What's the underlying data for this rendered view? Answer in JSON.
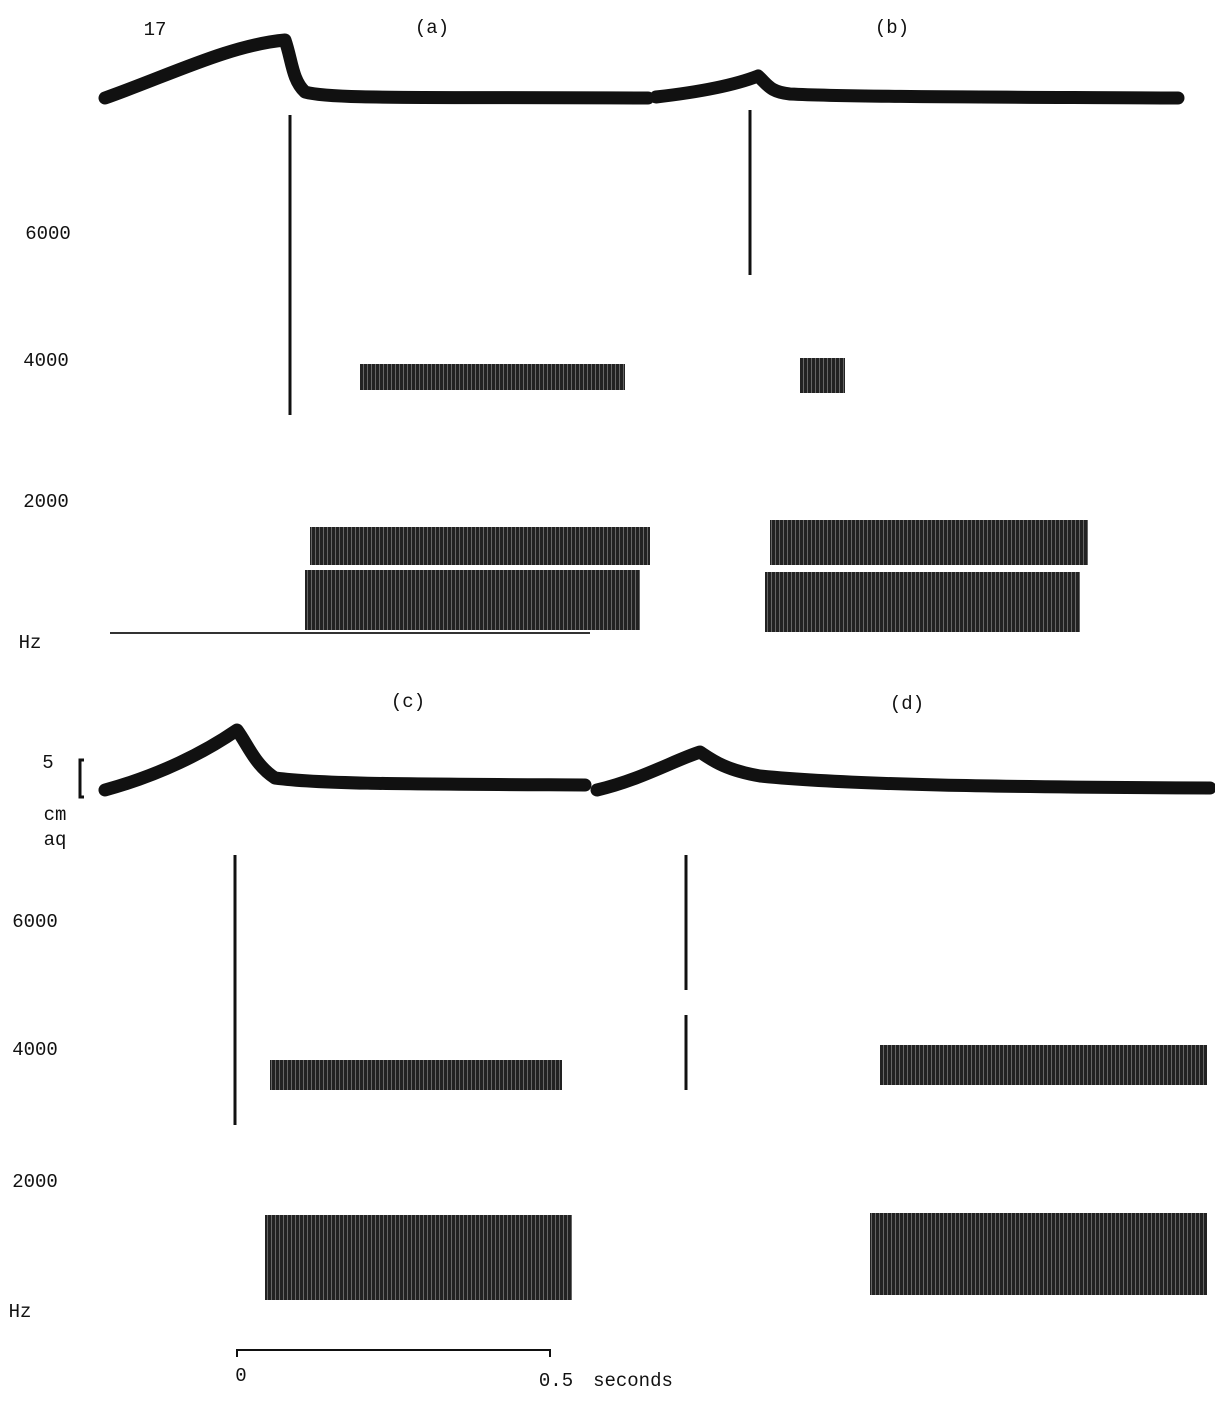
{
  "figure_number": "17",
  "panels": [
    {
      "label": "(a)"
    },
    {
      "label": "(b)"
    },
    {
      "label": "(c)"
    },
    {
      "label": "(d)"
    }
  ],
  "top_frequency_axis": {
    "ticks": [
      "6000",
      "4000",
      "2000"
    ],
    "unit": "Hz"
  },
  "bottom_frequency_axis": {
    "ticks": [
      "6000",
      "4000",
      "2000"
    ],
    "unit": "Hz"
  },
  "pressure_scale": {
    "value": "5",
    "unit_lines": [
      "cm",
      "aq"
    ]
  },
  "time_scale": {
    "start": "0",
    "end": "0.5",
    "unit": "seconds"
  }
}
